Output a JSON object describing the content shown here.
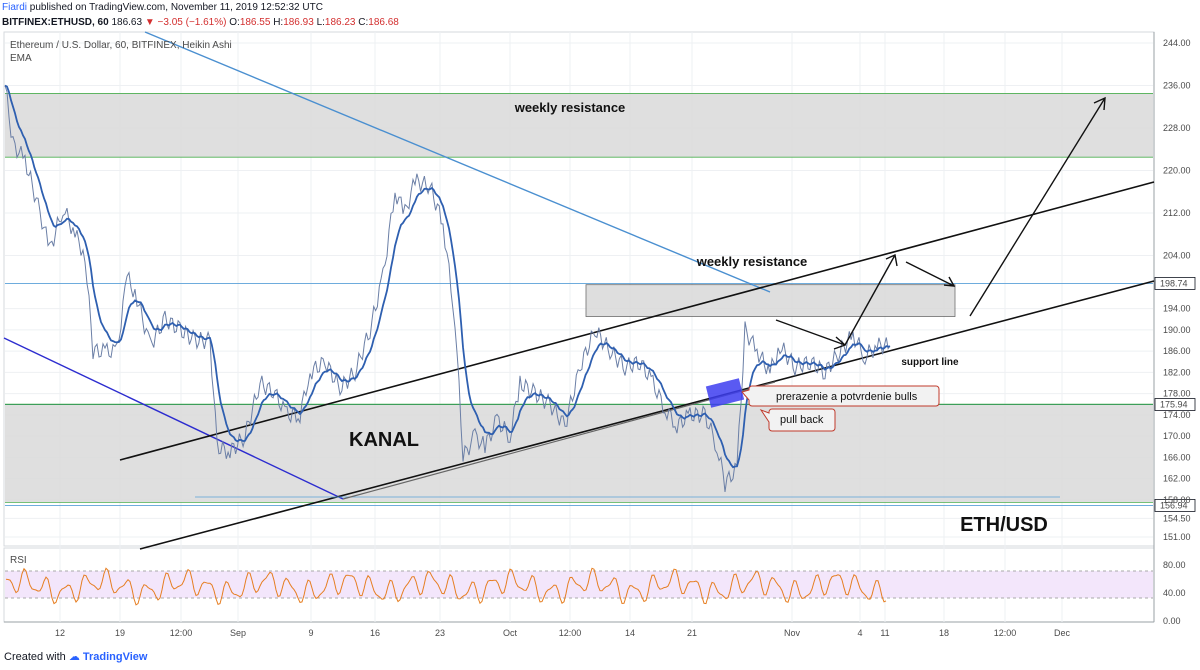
{
  "header": {
    "author": "Fiardi",
    "published": "published on TradingView.com, November 11, 2019 12:52:32 UTC",
    "symbol": "BITFINEX:ETHUSD, 60",
    "last": "186.63",
    "change": "−3.05 (−1.61%)",
    "o_label": "O:",
    "o": "186.55",
    "h_label": "H:",
    "h": "186.93",
    "l_label": "L:",
    "l": "186.23",
    "c_label": "C:",
    "c": "186.68"
  },
  "legend": {
    "title": "Ethereum / U.S. Dollar, 60, BITFINEX, Heikin Ashi",
    "indicator": "EMA"
  },
  "annotations": {
    "weekly_resistance_top": "weekly resistance",
    "weekly_resistance_mid": "weekly resistance",
    "kanal": "KANAL",
    "support_line": "support line",
    "ethusd": "ETH/USD",
    "callout_breakout": "prerazenie a potvrdenie bulls",
    "callout_pullback": "pull back"
  },
  "rsi": {
    "label": "RSI",
    "ticks": [
      "80.00",
      "40.00",
      "0.00"
    ],
    "upper": 70,
    "lower": 30
  },
  "footer": {
    "created_with": "Created with",
    "brand": "TradingView"
  },
  "colors": {
    "price_line": "#6b7fa6",
    "ema": "#2e5fb0",
    "rsi_line": "#e67e22",
    "rsi_band": "#f3e6fb",
    "zone": "#d9d9d9",
    "zone_border": "#4caf50",
    "blue_trend": "#4a8fd0",
    "navy_trend": "#2c2ccf",
    "channel": "#111111",
    "breakout_box": "#3d3df0",
    "callout_border": "#c0392b"
  },
  "chart_data": {
    "type": "line",
    "title": "Ethereum / U.S. Dollar, 60, BITFINEX, Heikin Ashi",
    "ylim": [
      148,
      246
    ],
    "y_ticks": [
      "244.00",
      "236.00",
      "228.00",
      "220.00",
      "212.00",
      "204.00",
      "198.74",
      "194.00",
      "190.00",
      "186.00",
      "182.00",
      "178.00",
      "175.94",
      "174.00",
      "170.00",
      "166.00",
      "162.00",
      "158.00",
      "156.94",
      "154.50",
      "151.00"
    ],
    "x_ticks": [
      "12",
      "19",
      "12:00",
      "Sep",
      "9",
      "16",
      "23",
      "Oct",
      "12:00",
      "14",
      "21",
      "Nov",
      "4",
      "11",
      "18",
      "12:00",
      "Dec"
    ],
    "horizontal_levels": [
      {
        "label": "198.74",
        "value": 198.74,
        "color": "#5aa0d8"
      },
      {
        "label": "175.94",
        "value": 175.94,
        "color": "#3a9b5c"
      },
      {
        "label": "156.94",
        "value": 156.94,
        "color": "#5aa0d8"
      }
    ],
    "zones": [
      {
        "name": "weekly resistance",
        "from": 222.5,
        "to": 234.5
      },
      {
        "name": "weekly resistance",
        "from": 192.5,
        "to": 198.5
      },
      {
        "name": "KANAL",
        "from": 157.5,
        "to": 176.0
      }
    ],
    "series": [
      {
        "values": [
          {
            "x": 0,
            "y": 236
          },
          {
            "x": 8,
            "y": 225
          },
          {
            "x": 20,
            "y": 222
          },
          {
            "x": 35,
            "y": 212
          },
          {
            "x": 45,
            "y": 205
          },
          {
            "x": 58,
            "y": 213
          },
          {
            "x": 70,
            "y": 208
          },
          {
            "x": 80,
            "y": 204
          },
          {
            "x": 88,
            "y": 186
          },
          {
            "x": 100,
            "y": 186
          },
          {
            "x": 112,
            "y": 186
          },
          {
            "x": 122,
            "y": 200
          },
          {
            "x": 132,
            "y": 196
          },
          {
            "x": 145,
            "y": 187
          },
          {
            "x": 160,
            "y": 192
          },
          {
            "x": 175,
            "y": 190
          },
          {
            "x": 190,
            "y": 188
          },
          {
            "x": 205,
            "y": 188
          },
          {
            "x": 212,
            "y": 168
          },
          {
            "x": 225,
            "y": 167
          },
          {
            "x": 240,
            "y": 170
          },
          {
            "x": 255,
            "y": 180
          },
          {
            "x": 270,
            "y": 178
          },
          {
            "x": 282,
            "y": 174
          },
          {
            "x": 295,
            "y": 174
          },
          {
            "x": 305,
            "y": 182
          },
          {
            "x": 320,
            "y": 184
          },
          {
            "x": 335,
            "y": 179
          },
          {
            "x": 350,
            "y": 182
          },
          {
            "x": 365,
            "y": 190
          },
          {
            "x": 378,
            "y": 200
          },
          {
            "x": 390,
            "y": 216
          },
          {
            "x": 400,
            "y": 212
          },
          {
            "x": 410,
            "y": 218
          },
          {
            "x": 425,
            "y": 217
          },
          {
            "x": 438,
            "y": 210
          },
          {
            "x": 450,
            "y": 192
          },
          {
            "x": 458,
            "y": 166
          },
          {
            "x": 470,
            "y": 170
          },
          {
            "x": 480,
            "y": 168
          },
          {
            "x": 492,
            "y": 173
          },
          {
            "x": 505,
            "y": 170
          },
          {
            "x": 515,
            "y": 180
          },
          {
            "x": 530,
            "y": 178
          },
          {
            "x": 545,
            "y": 176
          },
          {
            "x": 560,
            "y": 172
          },
          {
            "x": 575,
            "y": 183
          },
          {
            "x": 590,
            "y": 190
          },
          {
            "x": 605,
            "y": 186
          },
          {
            "x": 620,
            "y": 183
          },
          {
            "x": 635,
            "y": 184
          },
          {
            "x": 648,
            "y": 180
          },
          {
            "x": 660,
            "y": 175
          },
          {
            "x": 672,
            "y": 172
          },
          {
            "x": 685,
            "y": 174
          },
          {
            "x": 700,
            "y": 174
          },
          {
            "x": 712,
            "y": 168
          },
          {
            "x": 720,
            "y": 161
          },
          {
            "x": 732,
            "y": 164
          },
          {
            "x": 740,
            "y": 190
          },
          {
            "x": 752,
            "y": 186
          },
          {
            "x": 765,
            "y": 182
          },
          {
            "x": 775,
            "y": 187
          },
          {
            "x": 790,
            "y": 183
          },
          {
            "x": 805,
            "y": 184
          },
          {
            "x": 820,
            "y": 182
          },
          {
            "x": 835,
            "y": 186
          },
          {
            "x": 848,
            "y": 189
          },
          {
            "x": 860,
            "y": 185
          },
          {
            "x": 872,
            "y": 187
          },
          {
            "x": 885,
            "y": 187
          }
        ]
      }
    ]
  }
}
